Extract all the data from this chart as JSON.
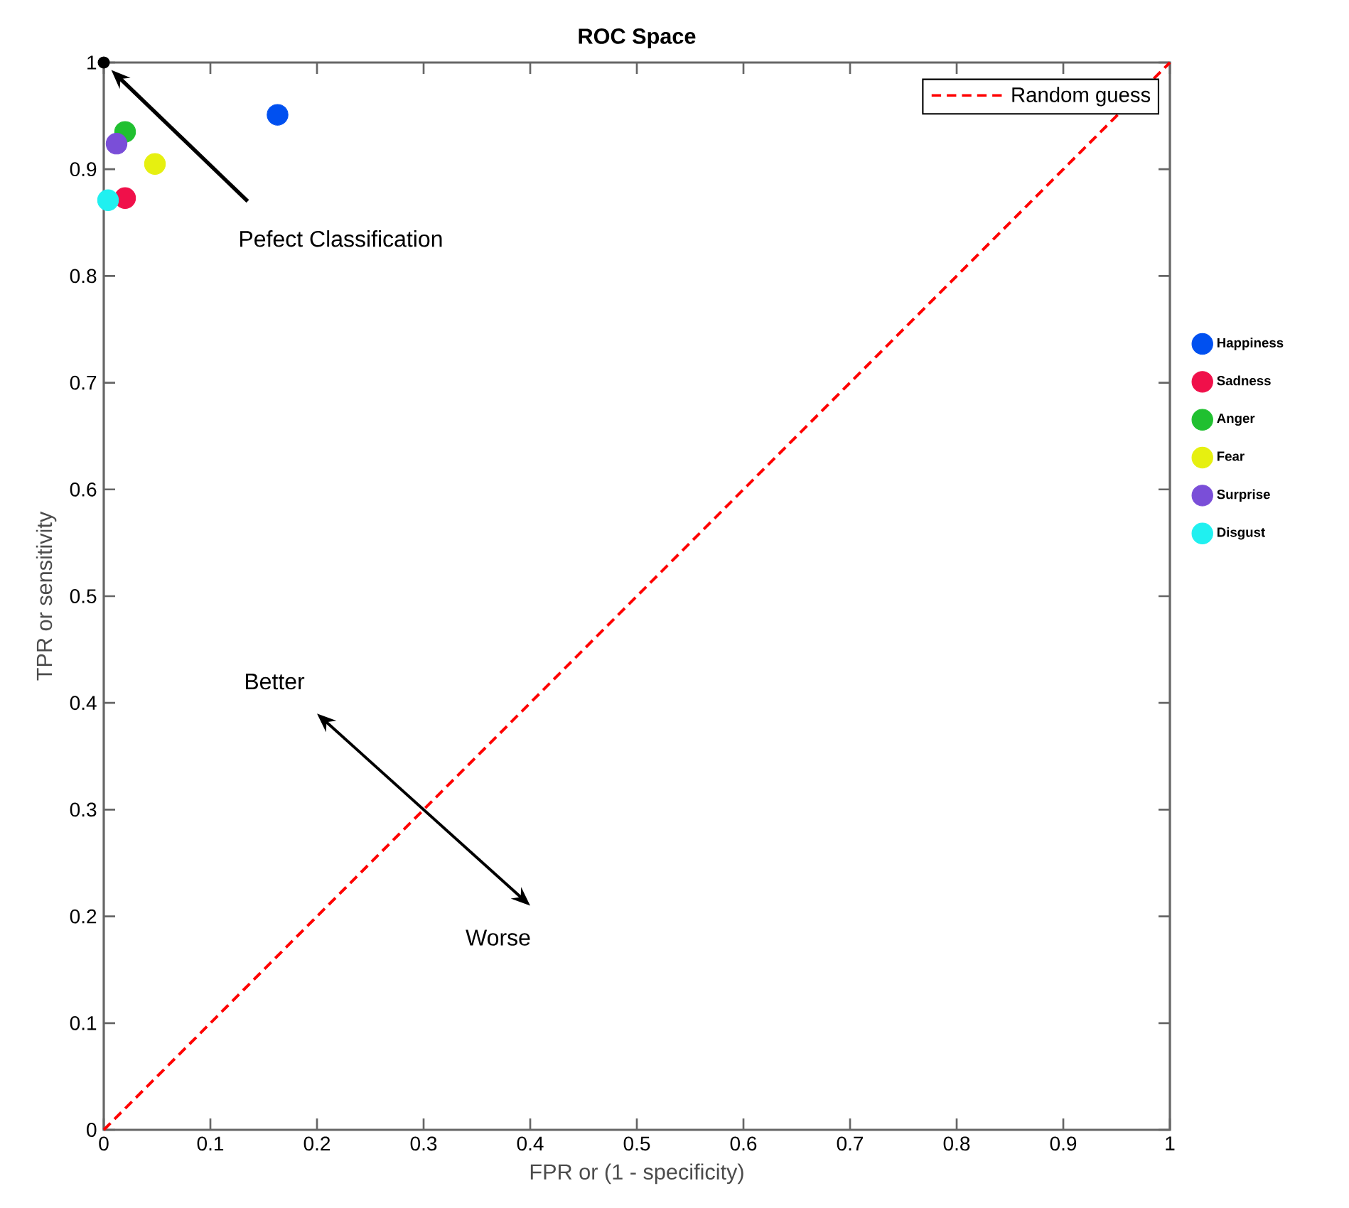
{
  "chart_data": {
    "type": "scatter",
    "title": "ROC Space",
    "xlabel": "FPR or (1 - specificity)",
    "ylabel": "TPR or sensitivity",
    "xlim": [
      0,
      1
    ],
    "ylim": [
      0,
      1
    ],
    "xticks": [
      0,
      0.1,
      0.2,
      0.3,
      0.4,
      0.5,
      0.6,
      0.7,
      0.8,
      0.9,
      1
    ],
    "yticks": [
      0,
      0.1,
      0.2,
      0.3,
      0.4,
      0.5,
      0.6,
      0.7,
      0.8,
      0.9,
      1
    ],
    "legend": "right",
    "series": [
      {
        "name": "Random guess",
        "type": "line",
        "color": "#ff0000",
        "line_style": "dashed",
        "marker": "none",
        "x": [
          0,
          1
        ],
        "values": [
          0,
          1
        ]
      },
      {
        "name": "Happiness",
        "color": "#0050f0",
        "marker": "circle",
        "x": [
          0.163
        ],
        "values": [
          0.951
        ]
      },
      {
        "name": "Sadness",
        "color": "#f0104a",
        "marker": "circle",
        "x": [
          0.02
        ],
        "values": [
          0.873
        ]
      },
      {
        "name": "Anger",
        "color": "#20c030",
        "marker": "circle",
        "x": [
          0.02
        ],
        "values": [
          0.935
        ]
      },
      {
        "name": "Fear",
        "color": "#e6f010",
        "marker": "circle",
        "x": [
          0.048
        ],
        "values": [
          0.905
        ]
      },
      {
        "name": "Surprise",
        "color": "#7a4ed8",
        "marker": "circle",
        "x": [
          0.012
        ],
        "values": [
          0.924
        ]
      },
      {
        "name": "Disgust",
        "color": "#20f0f0",
        "marker": "circle",
        "x": [
          0.004
        ],
        "values": [
          0.871
        ]
      },
      {
        "color": "#000000",
        "marker": "circle",
        "x": [
          0
        ],
        "values": [
          1
        ]
      }
    ],
    "annotations": [
      "Pefect Classification",
      "Better",
      "Worse"
    ]
  }
}
